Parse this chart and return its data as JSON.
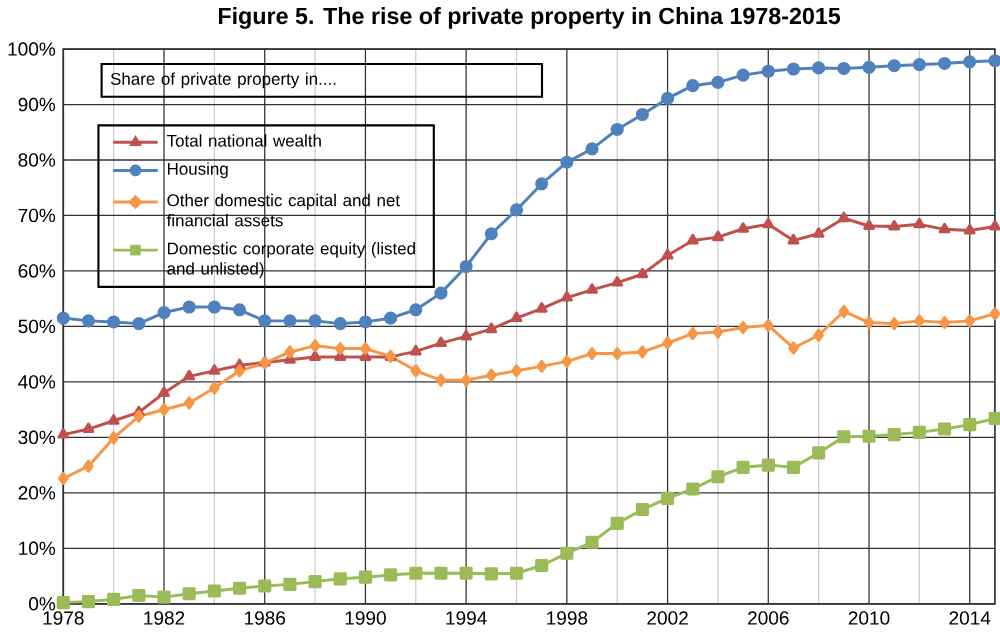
{
  "chart_data": {
    "type": "line",
    "title": "Figure 5. The rise of private property in China 1978-2015",
    "legend_title": "Share of private property in....",
    "x": [
      1978,
      1979,
      1980,
      1981,
      1982,
      1983,
      1984,
      1985,
      1986,
      1987,
      1988,
      1989,
      1990,
      1991,
      1992,
      1993,
      1994,
      1995,
      1996,
      1997,
      1998,
      1999,
      2000,
      2001,
      2002,
      2003,
      2004,
      2005,
      2006,
      2007,
      2008,
      2009,
      2010,
      2011,
      2012,
      2013,
      2014,
      2015
    ],
    "series": [
      {
        "name": "Total national wealth",
        "color": "#c0504d",
        "marker": "triangle",
        "values": [
          30.5,
          31.5,
          33,
          34.5,
          38,
          41,
          42,
          43,
          43.5,
          44,
          44.5,
          44.5,
          44.5,
          44.5,
          45.5,
          47,
          48.2,
          49.5,
          51.5,
          53.2,
          55.2,
          56.6,
          57.9,
          59.4,
          62.8,
          65.5,
          66.1,
          67.6,
          68.4,
          65.5,
          66.7,
          69.5,
          68.1,
          68,
          68.4,
          67.5,
          67.3,
          68
        ]
      },
      {
        "name": "Housing",
        "color": "#4f81bd",
        "marker": "circle",
        "values": [
          51.5,
          51,
          50.8,
          50.5,
          52.5,
          53.5,
          53.5,
          53,
          51,
          51,
          51,
          50.5,
          50.8,
          51.5,
          53,
          56,
          60.8,
          66.7,
          71,
          75.7,
          79.6,
          82,
          85.5,
          88.2,
          91.1,
          93.4,
          94,
          95.3,
          96,
          96.4,
          96.6,
          96.5,
          96.7,
          97,
          97.2,
          97.4,
          97.7,
          97.9
        ]
      },
      {
        "name": "Other domestic capital and net financial assets",
        "color": "#f79646",
        "marker": "diamond",
        "values": [
          22.6,
          24.8,
          29.9,
          33.8,
          35,
          36.2,
          38.9,
          42,
          43.4,
          45.4,
          46.5,
          46,
          46,
          44.6,
          42,
          40.3,
          40.3,
          41.2,
          42,
          42.8,
          43.7,
          45.1,
          45.1,
          45.4,
          47,
          48.7,
          49,
          49.8,
          50.2,
          46.1,
          48.4,
          52.7,
          50.7,
          50.5,
          51,
          50.7,
          51,
          52.3
        ]
      },
      {
        "name": "Domestic corporate equity (listed and unlisted)",
        "color": "#9bbb59",
        "marker": "square",
        "values": [
          0.2,
          0.4,
          0.8,
          1.5,
          1.2,
          1.8,
          2.3,
          2.8,
          3.2,
          3.5,
          4,
          4.5,
          4.8,
          5.2,
          5.5,
          5.5,
          5.5,
          5.4,
          5.5,
          6.9,
          9.1,
          11.1,
          14.5,
          17,
          19,
          20.7,
          22.9,
          24.6,
          25,
          24.6,
          27.2,
          30.1,
          30.2,
          30.5,
          30.9,
          31.5,
          32.3,
          33.4
        ]
      }
    ],
    "xlim": [
      1978,
      2015
    ],
    "xticks": [
      1978,
      1982,
      1986,
      1990,
      1994,
      1998,
      2002,
      2006,
      2010,
      2014
    ],
    "ylim": [
      0,
      100
    ],
    "yticks": [
      {
        "value": 0,
        "label": "0%"
      },
      {
        "value": 10,
        "label": "10%"
      },
      {
        "value": 20,
        "label": "20%"
      },
      {
        "value": 30,
        "label": "30%"
      },
      {
        "value": 40,
        "label": "40%"
      },
      {
        "value": 50,
        "label": "50%"
      },
      {
        "value": 60,
        "label": "60%"
      },
      {
        "value": 70,
        "label": "70%"
      },
      {
        "value": 80,
        "label": "80%"
      },
      {
        "value": 90,
        "label": "90%"
      },
      {
        "value": 100,
        "label": "100%"
      }
    ],
    "grid": true,
    "legend": "top left",
    "line_style": "solid"
  }
}
